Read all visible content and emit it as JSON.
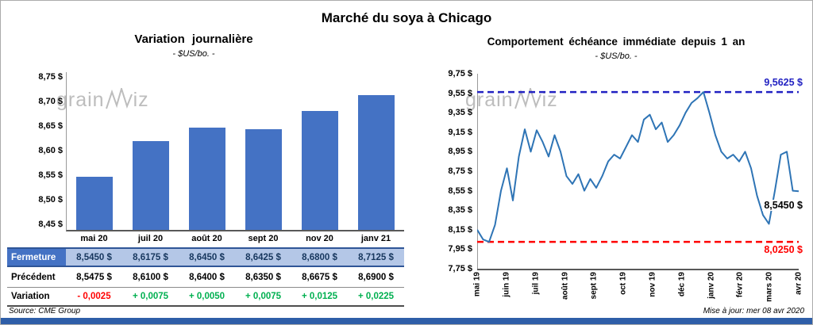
{
  "page": {
    "title": "Marché du soya à Chicago",
    "footer_source": "Source: CME Group",
    "footer_updated": "Mise à jour: mer 08 avr 2020",
    "watermark_prefix": "grain",
    "watermark_suffix": "iz",
    "watermark_color": "#bdbdbd",
    "accent_bar_color": "#2E5EA8"
  },
  "chart_data": [
    {
      "type": "bar",
      "title": "Variation journalière",
      "subtitle": "- $US/bo. -",
      "categories": [
        "mai 20",
        "juil 20",
        "août 20",
        "sept 20",
        "nov 20",
        "janv 21"
      ],
      "values": [
        8.545,
        8.6175,
        8.645,
        8.6425,
        8.68,
        8.7125
      ],
      "bar_color": "#4472C4",
      "plot_ylim": [
        8.435,
        8.76
      ],
      "yticks": [
        {
          "v": 8.75,
          "label": "8,75 $"
        },
        {
          "v": 8.7,
          "label": "8,70 $"
        },
        {
          "v": 8.65,
          "label": "8,65 $"
        },
        {
          "v": 8.6,
          "label": "8,60 $"
        },
        {
          "v": 8.55,
          "label": "8,55 $"
        },
        {
          "v": 8.5,
          "label": "8,50 $"
        },
        {
          "v": 8.45,
          "label": "8,45 $"
        }
      ],
      "grid": false,
      "legend": false
    },
    {
      "type": "line",
      "title": "Comportement échéance immédiate depuis 1 an",
      "subtitle": "- $US/bo. -",
      "x_labels": [
        "mai 19",
        "juin 19",
        "juil 19",
        "août 19",
        "sept 19",
        "oct 19",
        "nov 19",
        "déc 19",
        "janv 20",
        "févr 20",
        "mars 20",
        "avr 20"
      ],
      "values": [
        8.15,
        8.05,
        8.025,
        8.2,
        8.55,
        8.78,
        8.45,
        8.9,
        9.18,
        8.95,
        9.17,
        9.05,
        8.9,
        9.12,
        8.95,
        8.7,
        8.62,
        8.72,
        8.55,
        8.67,
        8.58,
        8.7,
        8.85,
        8.92,
        8.88,
        9.0,
        9.12,
        9.05,
        9.28,
        9.33,
        9.18,
        9.25,
        9.05,
        9.12,
        9.22,
        9.35,
        9.45,
        9.5,
        9.5625,
        9.35,
        9.12,
        8.95,
        8.88,
        8.92,
        8.85,
        8.95,
        8.78,
        8.5,
        8.3,
        8.21,
        8.55,
        8.92,
        8.95,
        8.55,
        8.545
      ],
      "ylim": [
        7.75,
        9.75
      ],
      "yticks": [
        {
          "v": 9.75,
          "label": "9,75 $"
        },
        {
          "v": 9.55,
          "label": "9,55 $"
        },
        {
          "v": 9.35,
          "label": "9,35 $"
        },
        {
          "v": 9.15,
          "label": "9,15 $"
        },
        {
          "v": 8.95,
          "label": "8,95 $"
        },
        {
          "v": 8.75,
          "label": "8,75 $"
        },
        {
          "v": 8.55,
          "label": "8,55 $"
        },
        {
          "v": 8.35,
          "label": "8,35 $"
        },
        {
          "v": 8.15,
          "label": "8,15 $"
        },
        {
          "v": 7.95,
          "label": "7,95 $"
        },
        {
          "v": 7.75,
          "label": "7,75 $"
        }
      ],
      "line_color": "#2E74B5",
      "annotations": {
        "high": {
          "value": 9.5625,
          "label": "9,5625 $",
          "color": "#2222C2"
        },
        "last": {
          "value": 8.545,
          "label": "8,5450 $",
          "color": "#000000"
        },
        "low": {
          "value": 8.025,
          "label": "8,0250 $",
          "color": "#FF0000"
        }
      },
      "grid": false,
      "legend": false
    }
  ],
  "table": {
    "negative_color": "#FF0000",
    "positive_color": "#00B050",
    "header_bg": "#4472C4",
    "row_bg": "#B4C7E7",
    "border_color": "#2F5597",
    "rows": [
      {
        "label": "Fermeture",
        "style": "fermeture",
        "values": [
          "8,5450 $",
          "8,6175 $",
          "8,6450 $",
          "8,6425 $",
          "8,6800 $",
          "8,7125 $"
        ]
      },
      {
        "label": "Précédent",
        "style": "precedent",
        "values": [
          "8,5475 $",
          "8,6100 $",
          "8,6400 $",
          "8,6350 $",
          "8,6675 $",
          "8,6900 $"
        ]
      },
      {
        "label": "Variation",
        "style": "variation",
        "values": [
          "- 0,0025",
          "+ 0,0075",
          "+ 0,0050",
          "+ 0,0075",
          "+ 0,0125",
          "+ 0,0225"
        ]
      }
    ]
  }
}
